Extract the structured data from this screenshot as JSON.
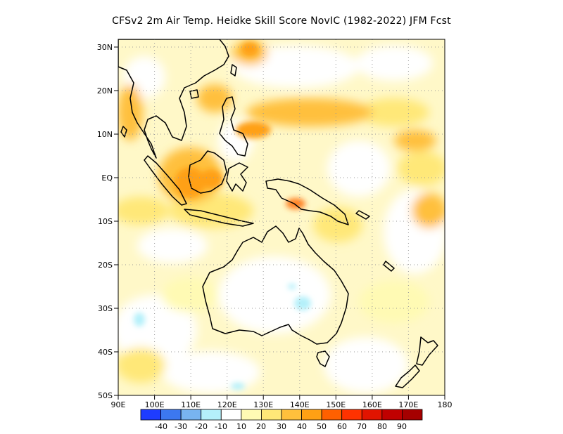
{
  "title": "CFSv2  2m Air Temp. Heidke Skill Score NovIC (1982-2022) JFM Fcst",
  "lat_labels": [
    "30N",
    "20N",
    "10N",
    "EQ",
    "10S",
    "20S",
    "30S",
    "40S",
    "50S"
  ],
  "lon_labels": [
    "90E",
    "100E",
    "110E",
    "120E",
    "130E",
    "140E",
    "150E",
    "160E",
    "170E",
    "180"
  ],
  "colorbar": {
    "colors": [
      "#1e3cff",
      "#3c78f0",
      "#78b4f0",
      "#b4f0fa",
      "#ffffff",
      "#fffab4",
      "#ffe878",
      "#ffc03c",
      "#ffa014",
      "#ff6000",
      "#ff3200",
      "#e11400",
      "#c00000",
      "#a50000"
    ],
    "labels": [
      "-40",
      "-30",
      "-20",
      "-10",
      "10",
      "20",
      "30",
      "40",
      "50",
      "60",
      "70",
      "80",
      "90"
    ]
  }
}
